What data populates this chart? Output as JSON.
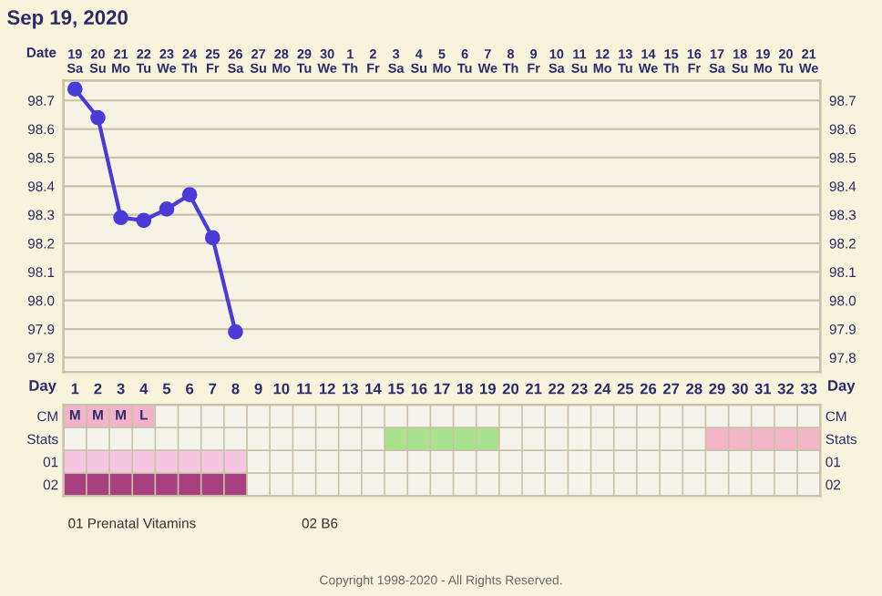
{
  "chart_data": [
    {
      "type": "line",
      "title": "Sep 19, 2020",
      "xlabel": "Date",
      "categories": [
        "19\nSa",
        "20\nSu",
        "21\nMo",
        "22\nTu",
        "23\nWe",
        "24\nTh",
        "25\nFr",
        "26\nSa",
        "27\nSu",
        "28\nMo",
        "29\nTu",
        "30\nWe",
        "1\nTh",
        "2\nFr",
        "3\nSa",
        "4\nSu",
        "5\nMo",
        "6\nTu",
        "7\nWe",
        "8\nTh",
        "9\nFr",
        "10\nSa",
        "11\nSu",
        "12\nMo",
        "13\nTu",
        "14\nWe",
        "15\nTh",
        "16\nFr",
        "17\nSa",
        "18\nSu",
        "19\nMo",
        "20\nTu",
        "21\nWe"
      ],
      "series": [
        {
          "color": "#4b3bd6",
          "values": [
            98.74,
            98.64,
            98.29,
            98.28,
            98.32,
            98.37,
            98.22,
            97.89,
            null,
            null,
            null,
            null,
            null,
            null,
            null,
            null,
            null,
            null,
            null,
            null,
            null,
            null,
            null,
            null,
            null,
            null,
            null,
            null,
            null,
            null,
            null,
            null,
            null
          ]
        }
      ],
      "marker": "circle",
      "line_style": "solid",
      "grid": true,
      "ylim": [
        97.75,
        98.77
      ],
      "yticks": [
        97.8,
        {
          "value": 97.9,
          "label": "97.9"
        },
        {
          "value": 98.0,
          "label": "98.0"
        },
        98.1,
        98.2,
        98.3,
        98.4,
        98.5,
        98.6,
        98.7
      ],
      "y2lim": [
        97.75,
        98.77
      ],
      "y2ticks": [
        97.8,
        {
          "value": 97.9,
          "label": "97.9"
        },
        {
          "value": 98.0,
          "label": "98.0"
        },
        98.1,
        98.2,
        98.3,
        98.4,
        98.5,
        98.6,
        98.7
      ]
    },
    {
      "type": "bar",
      "orientation": "horizontal",
      "xlabel": "Day",
      "grid": true,
      "categories": [
        "CM",
        "Stats",
        "01",
        "02"
      ],
      "xlim": [
        0.5,
        33.5
      ],
      "xticks": [
        1,
        2,
        3,
        4,
        5,
        6,
        7,
        8,
        9,
        10,
        11,
        12,
        13,
        14,
        15,
        16,
        17,
        18,
        19,
        20,
        21,
        22,
        23,
        24,
        25,
        26,
        27,
        28,
        29,
        30,
        31,
        32,
        33
      ],
      "series": [
        {
          "color": "#f2b2c9",
          "values": [
            4,
            null,
            null,
            null
          ],
          "base": [
            0.5,
            null,
            null,
            null
          ]
        },
        {
          "color": "#a9e38e",
          "values": [
            null,
            5,
            null,
            null
          ],
          "base": [
            null,
            14.5,
            null,
            null
          ]
        },
        {
          "color": "#f4b6c9",
          "values": [
            null,
            5,
            null,
            null
          ],
          "base": [
            null,
            28.5,
            null,
            null
          ]
        },
        {
          "color": "#f5c6df",
          "values": [
            null,
            null,
            8,
            null
          ],
          "base": [
            null,
            null,
            0.5,
            null
          ]
        },
        {
          "color": "#a83f80",
          "values": [
            null,
            null,
            null,
            8
          ],
          "base": [
            null,
            null,
            null,
            0.5
          ]
        }
      ],
      "annotations": [
        {
          "text": "M",
          "x": 1,
          "y": "CM"
        },
        {
          "text": "M",
          "x": 2,
          "y": "CM"
        },
        {
          "text": "M",
          "x": 3,
          "y": "CM"
        },
        {
          "text": "L",
          "x": 4,
          "y": "CM"
        },
        "01 Prenatal Vitamins",
        "02 B6",
        "Copyright 1998-2020 - All Rights Reserved."
      ]
    }
  ]
}
